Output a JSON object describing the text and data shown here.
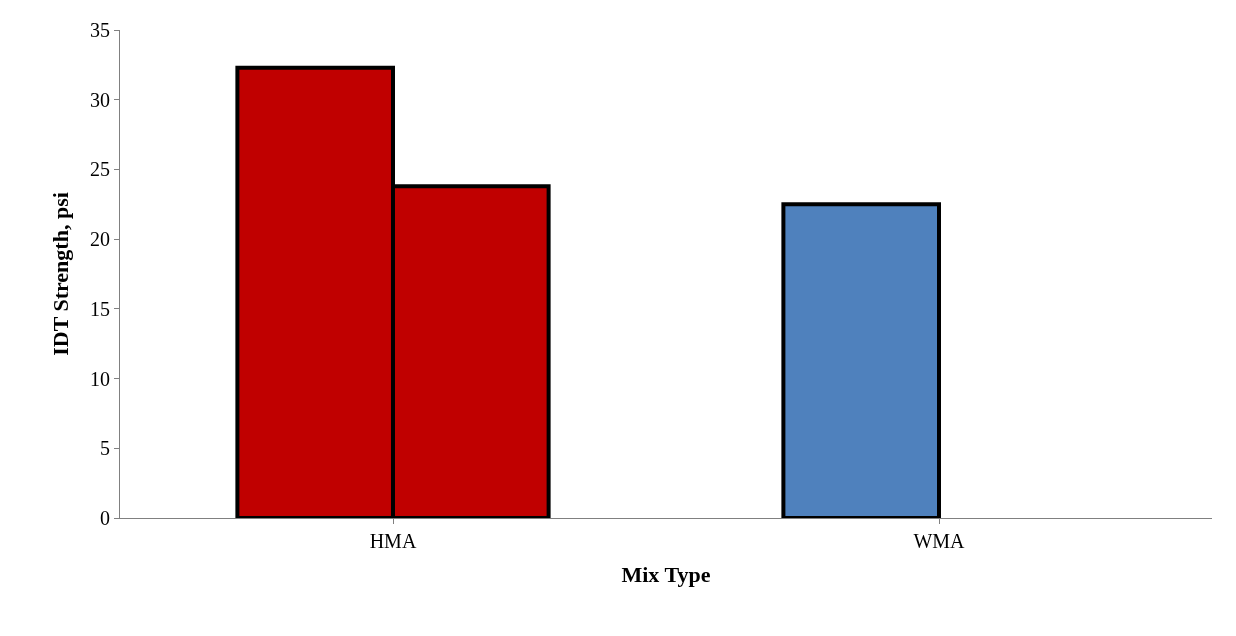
{
  "chart_data": {
    "type": "bar",
    "xlabel": "Mix Type",
    "ylabel": "IDT Strength, psi",
    "categories": [
      "HMA",
      "WMA"
    ],
    "series": [
      {
        "colors": [
          "#c00000",
          "#4f81bd"
        ],
        "values": [
          32.3,
          22.5
        ]
      },
      {
        "colors": [
          "#c00000",
          "#4f81bd"
        ],
        "values": [
          23.8,
          null
        ]
      }
    ],
    "ylim": [
      0,
      35
    ],
    "yticks": [
      0,
      5,
      10,
      15,
      20,
      25,
      30,
      35
    ]
  }
}
